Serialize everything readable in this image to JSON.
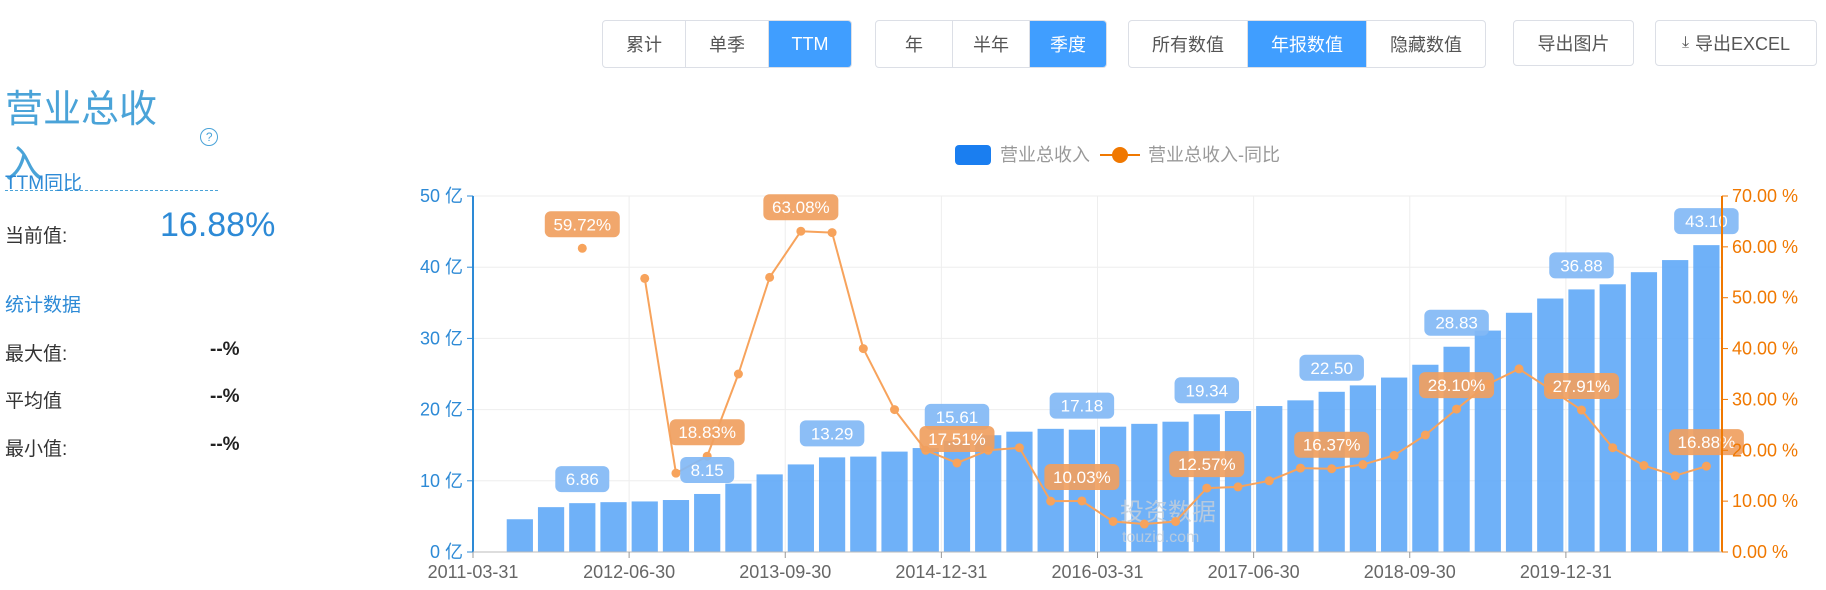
{
  "controls": {
    "group1": [
      {
        "label": "累计",
        "active": false
      },
      {
        "label": "单季",
        "active": false
      },
      {
        "label": "TTM",
        "active": true
      }
    ],
    "group2": [
      {
        "label": "年",
        "active": false
      },
      {
        "label": "半年",
        "active": false
      },
      {
        "label": "季度",
        "active": true
      }
    ],
    "group3": [
      {
        "label": "所有数值",
        "active": false
      },
      {
        "label": "年报数值",
        "active": true
      },
      {
        "label": "隐藏数值",
        "active": false
      }
    ],
    "export_image": "导出图片",
    "export_excel": "导出EXCEL"
  },
  "panel": {
    "title": "营业总收入",
    "help_icon": "?",
    "section1": "TTM同比",
    "current_label": "当前值:",
    "current_value": "16.88%",
    "section2": "统计数据",
    "max_label": "最大值:",
    "max_value": "--%",
    "avg_label": "平均值",
    "avg_value": "--%",
    "min_label": "最小值:",
    "min_value": "--%"
  },
  "watermark": {
    "line1": "投资数据",
    "line2": "touzid.com"
  },
  "colors": {
    "bar": "#5fa8f7",
    "bar_label_bg": "#82b8f5",
    "line": "#f7a35c",
    "line_label_bg": "#f0a060",
    "left_axis": "#2d8ad6",
    "right_axis": "#f07800"
  },
  "chart_data": {
    "type": "bar",
    "title": "",
    "legend": {
      "position": "top-center",
      "items": [
        "营业总收入",
        "营业总收入-同比"
      ]
    },
    "x_ticks": [
      "2011-03-31",
      "2012-06-30",
      "2013-09-30",
      "2014-12-31",
      "2016-03-31",
      "2017-06-30",
      "2018-09-30",
      "2019-12-31"
    ],
    "x": [
      "2011-03-31",
      "2011-06-30",
      "2011-09-30",
      "2011-12-31",
      "2012-03-31",
      "2012-06-30",
      "2012-09-30",
      "2012-12-31",
      "2013-03-31",
      "2013-06-30",
      "2013-09-30",
      "2013-12-31",
      "2014-03-31",
      "2014-06-30",
      "2014-09-30",
      "2014-12-31",
      "2015-03-31",
      "2015-06-30",
      "2015-09-30",
      "2015-12-31",
      "2016-03-31",
      "2016-06-30",
      "2016-09-30",
      "2016-12-31",
      "2017-03-31",
      "2017-06-30",
      "2017-09-30",
      "2017-12-31",
      "2018-03-31",
      "2018-06-30",
      "2018-09-30",
      "2018-12-31",
      "2019-03-31",
      "2019-06-30",
      "2019-09-30",
      "2019-12-31",
      "2020-03-31",
      "2020-06-30",
      "2020-09-30",
      "2020-12-31"
    ],
    "series": [
      {
        "name": "营业总收入",
        "type": "bar",
        "axis": "left",
        "values": [
          null,
          4.6,
          6.3,
          6.86,
          7.0,
          7.1,
          7.3,
          8.15,
          9.6,
          10.9,
          12.3,
          13.29,
          13.4,
          14.1,
          14.6,
          15.61,
          16.4,
          16.9,
          17.3,
          17.18,
          17.6,
          18.0,
          18.3,
          19.34,
          19.8,
          20.5,
          21.3,
          22.5,
          23.4,
          24.5,
          26.3,
          28.83,
          31.1,
          33.6,
          35.6,
          36.88,
          37.6,
          39.3,
          41.0,
          43.1
        ],
        "labels": [
          {
            "index": 3,
            "text": "6.86"
          },
          {
            "index": 7,
            "text": "8.15"
          },
          {
            "index": 11,
            "text": "13.29"
          },
          {
            "index": 15,
            "text": "15.61"
          },
          {
            "index": 19,
            "text": "17.18"
          },
          {
            "index": 23,
            "text": "19.34"
          },
          {
            "index": 27,
            "text": "22.50"
          },
          {
            "index": 31,
            "text": "28.83"
          },
          {
            "index": 35,
            "text": "36.88"
          },
          {
            "index": 39,
            "text": "43.10"
          }
        ]
      },
      {
        "name": "营业总收入-同比",
        "type": "line",
        "axis": "right",
        "values": [
          null,
          null,
          null,
          59.72,
          null,
          53.8,
          15.5,
          18.83,
          35.0,
          54.0,
          63.08,
          62.8,
          40.0,
          28.0,
          20.0,
          17.51,
          20.0,
          20.5,
          10.0,
          10.03,
          6.0,
          5.5,
          6.0,
          12.57,
          12.8,
          14.0,
          16.5,
          16.37,
          17.2,
          19.0,
          23.0,
          28.1,
          33.0,
          36.0,
          32.0,
          27.91,
          20.5,
          17.0,
          15.0,
          16.88
        ],
        "labels": [
          {
            "index": 3,
            "text": "59.72%"
          },
          {
            "index": 7,
            "text": "18.83%"
          },
          {
            "index": 10,
            "text": "63.08%"
          },
          {
            "index": 15,
            "text": "17.51%"
          },
          {
            "index": 19,
            "text": "10.03%"
          },
          {
            "index": 23,
            "text": "12.57%"
          },
          {
            "index": 27,
            "text": "16.37%"
          },
          {
            "index": 31,
            "text": "28.10%"
          },
          {
            "index": 35,
            "text": "27.91%"
          },
          {
            "index": 39,
            "text": "16.88%"
          }
        ]
      }
    ],
    "y_left": {
      "ticks": [
        "0 亿",
        "10 亿",
        "20 亿",
        "30 亿",
        "40 亿",
        "50 亿"
      ],
      "min": 0,
      "max": 50
    },
    "y_right": {
      "ticks": [
        "0.00 %",
        "10.00 %",
        "20.00 %",
        "30.00 %",
        "40.00 %",
        "50.00 %",
        "60.00 %",
        "70.00 %"
      ],
      "min": 0,
      "max": 70
    },
    "grid": true
  }
}
